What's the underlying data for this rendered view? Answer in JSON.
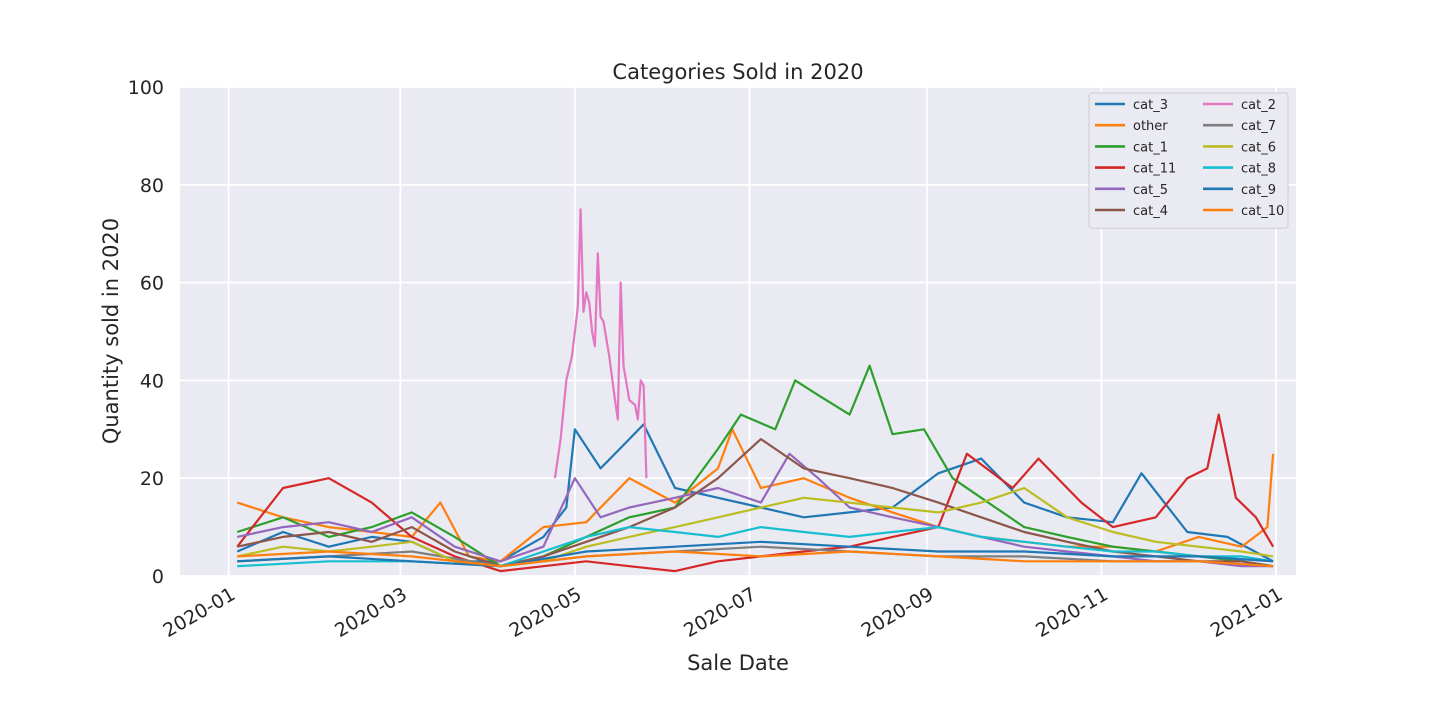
{
  "chart_data": {
    "type": "line",
    "title": "Categories Sold in 2020",
    "xlabel": "Sale Date",
    "ylabel": "Quantity sold in 2020",
    "xlim": [
      "2019-12-15",
      "2021-01-08"
    ],
    "ylim": [
      0,
      100
    ],
    "x_ticks": [
      "2020-01",
      "2020-03",
      "2020-05",
      "2020-07",
      "2020-09",
      "2020-11",
      "2021-01"
    ],
    "y_ticks": [
      0,
      20,
      40,
      60,
      80,
      100
    ],
    "grid": true,
    "legend_position": "top-right",
    "legend_columns": 2,
    "series": [
      {
        "name": "cat_3",
        "color": "#1f77b4",
        "points": [
          [
            "2020-01-04",
            5
          ],
          [
            "2020-01-20",
            9
          ],
          [
            "2020-02-05",
            6
          ],
          [
            "2020-02-20",
            8
          ],
          [
            "2020-03-05",
            7
          ],
          [
            "2020-03-20",
            3
          ],
          [
            "2020-04-05",
            3
          ],
          [
            "2020-04-20",
            8
          ],
          [
            "2020-04-28",
            14
          ],
          [
            "2020-05-01",
            30
          ],
          [
            "2020-05-10",
            22
          ],
          [
            "2020-05-20",
            28
          ],
          [
            "2020-05-25",
            31
          ],
          [
            "2020-06-05",
            18
          ],
          [
            "2020-06-20",
            16
          ],
          [
            "2020-07-05",
            14
          ],
          [
            "2020-07-20",
            12
          ],
          [
            "2020-08-05",
            13
          ],
          [
            "2020-08-20",
            14
          ],
          [
            "2020-09-05",
            21
          ],
          [
            "2020-09-20",
            24
          ],
          [
            "2020-10-05",
            15
          ],
          [
            "2020-10-20",
            12
          ],
          [
            "2020-11-05",
            11
          ],
          [
            "2020-11-15",
            21
          ],
          [
            "2020-12-01",
            9
          ],
          [
            "2020-12-15",
            8
          ],
          [
            "2020-12-31",
            3
          ]
        ]
      },
      {
        "name": "other",
        "color": "#ff7f0e",
        "points": [
          [
            "2020-01-04",
            15
          ],
          [
            "2020-01-20",
            12
          ],
          [
            "2020-02-05",
            10
          ],
          [
            "2020-02-20",
            9
          ],
          [
            "2020-03-05",
            8
          ],
          [
            "2020-03-15",
            15
          ],
          [
            "2020-03-25",
            4
          ],
          [
            "2020-04-05",
            3
          ],
          [
            "2020-04-20",
            10
          ],
          [
            "2020-05-05",
            11
          ],
          [
            "2020-05-20",
            20
          ],
          [
            "2020-06-05",
            15
          ],
          [
            "2020-06-20",
            22
          ],
          [
            "2020-06-25",
            30
          ],
          [
            "2020-07-05",
            18
          ],
          [
            "2020-07-20",
            20
          ],
          [
            "2020-08-05",
            16
          ],
          [
            "2020-08-20",
            13
          ],
          [
            "2020-09-05",
            10
          ],
          [
            "2020-09-20",
            8
          ],
          [
            "2020-10-05",
            7
          ],
          [
            "2020-10-20",
            6
          ],
          [
            "2020-11-05",
            6
          ],
          [
            "2020-11-20",
            5
          ],
          [
            "2020-12-05",
            8
          ],
          [
            "2020-12-20",
            6
          ],
          [
            "2020-12-29",
            10
          ],
          [
            "2020-12-31",
            25
          ]
        ]
      },
      {
        "name": "cat_1",
        "color": "#2ca02c",
        "points": [
          [
            "2020-01-04",
            9
          ],
          [
            "2020-01-20",
            12
          ],
          [
            "2020-02-05",
            8
          ],
          [
            "2020-02-20",
            10
          ],
          [
            "2020-03-05",
            13
          ],
          [
            "2020-03-20",
            8
          ],
          [
            "2020-04-05",
            2
          ],
          [
            "2020-04-20",
            4
          ],
          [
            "2020-05-05",
            8
          ],
          [
            "2020-05-20",
            12
          ],
          [
            "2020-06-05",
            14
          ],
          [
            "2020-06-20",
            26
          ],
          [
            "2020-06-28",
            33
          ],
          [
            "2020-07-10",
            30
          ],
          [
            "2020-07-17",
            40
          ],
          [
            "2020-07-25",
            37
          ],
          [
            "2020-08-05",
            33
          ],
          [
            "2020-08-12",
            43
          ],
          [
            "2020-08-20",
            29
          ],
          [
            "2020-08-31",
            30
          ],
          [
            "2020-09-10",
            20
          ],
          [
            "2020-09-20",
            16
          ],
          [
            "2020-10-05",
            10
          ],
          [
            "2020-10-20",
            8
          ],
          [
            "2020-11-05",
            6
          ],
          [
            "2020-11-20",
            5
          ],
          [
            "2020-12-05",
            4
          ],
          [
            "2020-12-20",
            3
          ],
          [
            "2020-12-31",
            2
          ]
        ]
      },
      {
        "name": "cat_11",
        "color": "#d62728",
        "points": [
          [
            "2020-01-04",
            6
          ],
          [
            "2020-01-20",
            18
          ],
          [
            "2020-02-05",
            20
          ],
          [
            "2020-02-20",
            15
          ],
          [
            "2020-03-05",
            8
          ],
          [
            "2020-03-20",
            4
          ],
          [
            "2020-04-05",
            1
          ],
          [
            "2020-04-20",
            2
          ],
          [
            "2020-05-05",
            3
          ],
          [
            "2020-05-20",
            2
          ],
          [
            "2020-06-05",
            1
          ],
          [
            "2020-06-20",
            3
          ],
          [
            "2020-07-05",
            4
          ],
          [
            "2020-07-20",
            5
          ],
          [
            "2020-08-05",
            6
          ],
          [
            "2020-08-20",
            8
          ],
          [
            "2020-09-05",
            10
          ],
          [
            "2020-09-15",
            25
          ],
          [
            "2020-10-01",
            18
          ],
          [
            "2020-10-10",
            24
          ],
          [
            "2020-10-25",
            15
          ],
          [
            "2020-11-05",
            10
          ],
          [
            "2020-11-20",
            12
          ],
          [
            "2020-12-01",
            20
          ],
          [
            "2020-12-08",
            22
          ],
          [
            "2020-12-12",
            33
          ],
          [
            "2020-12-18",
            16
          ],
          [
            "2020-12-25",
            12
          ],
          [
            "2020-12-31",
            6
          ]
        ]
      },
      {
        "name": "cat_5",
        "color": "#9467bd",
        "points": [
          [
            "2020-01-04",
            8
          ],
          [
            "2020-01-20",
            10
          ],
          [
            "2020-02-05",
            11
          ],
          [
            "2020-02-20",
            9
          ],
          [
            "2020-03-05",
            12
          ],
          [
            "2020-03-20",
            6
          ],
          [
            "2020-04-05",
            3
          ],
          [
            "2020-04-20",
            6
          ],
          [
            "2020-05-01",
            20
          ],
          [
            "2020-05-10",
            12
          ],
          [
            "2020-05-20",
            14
          ],
          [
            "2020-06-05",
            16
          ],
          [
            "2020-06-20",
            18
          ],
          [
            "2020-07-05",
            15
          ],
          [
            "2020-07-15",
            25
          ],
          [
            "2020-07-25",
            20
          ],
          [
            "2020-08-05",
            14
          ],
          [
            "2020-08-20",
            12
          ],
          [
            "2020-09-05",
            10
          ],
          [
            "2020-09-20",
            8
          ],
          [
            "2020-10-05",
            6
          ],
          [
            "2020-10-20",
            5
          ],
          [
            "2020-11-05",
            4
          ],
          [
            "2020-11-20",
            3
          ],
          [
            "2020-12-05",
            3
          ],
          [
            "2020-12-20",
            2
          ],
          [
            "2020-12-31",
            2
          ]
        ]
      },
      {
        "name": "cat_4",
        "color": "#8c564b",
        "points": [
          [
            "2020-01-04",
            6
          ],
          [
            "2020-01-20",
            8
          ],
          [
            "2020-02-05",
            9
          ],
          [
            "2020-02-20",
            7
          ],
          [
            "2020-03-05",
            10
          ],
          [
            "2020-03-20",
            5
          ],
          [
            "2020-04-05",
            2
          ],
          [
            "2020-04-20",
            4
          ],
          [
            "2020-05-05",
            7
          ],
          [
            "2020-05-20",
            10
          ],
          [
            "2020-06-05",
            14
          ],
          [
            "2020-06-20",
            20
          ],
          [
            "2020-07-05",
            28
          ],
          [
            "2020-07-20",
            22
          ],
          [
            "2020-08-05",
            20
          ],
          [
            "2020-08-20",
            18
          ],
          [
            "2020-09-05",
            15
          ],
          [
            "2020-09-20",
            12
          ],
          [
            "2020-10-05",
            9
          ],
          [
            "2020-10-20",
            7
          ],
          [
            "2020-11-05",
            5
          ],
          [
            "2020-11-20",
            4
          ],
          [
            "2020-12-05",
            3
          ],
          [
            "2020-12-20",
            3
          ],
          [
            "2020-12-31",
            2
          ]
        ]
      },
      {
        "name": "cat_2",
        "color": "#e377c2",
        "points": [
          [
            "2020-04-24",
            20
          ],
          [
            "2020-04-26",
            28
          ],
          [
            "2020-04-28",
            40
          ],
          [
            "2020-04-30",
            45
          ],
          [
            "2020-05-02",
            55
          ],
          [
            "2020-05-03",
            75
          ],
          [
            "2020-05-04",
            54
          ],
          [
            "2020-05-05",
            58
          ],
          [
            "2020-05-06",
            56
          ],
          [
            "2020-05-07",
            50
          ],
          [
            "2020-05-08",
            47
          ],
          [
            "2020-05-09",
            66
          ],
          [
            "2020-05-10",
            53
          ],
          [
            "2020-05-11",
            52
          ],
          [
            "2020-05-13",
            45
          ],
          [
            "2020-05-15",
            36
          ],
          [
            "2020-05-16",
            32
          ],
          [
            "2020-05-17",
            60
          ],
          [
            "2020-05-18",
            43
          ],
          [
            "2020-05-20",
            36
          ],
          [
            "2020-05-22",
            35
          ],
          [
            "2020-05-23",
            32
          ],
          [
            "2020-05-24",
            40
          ],
          [
            "2020-05-25",
            39
          ],
          [
            "2020-05-26",
            20
          ]
        ]
      },
      {
        "name": "cat_7",
        "color": "#7f7f7f",
        "points": [
          [
            "2020-01-04",
            3
          ],
          [
            "2020-02-05",
            4
          ],
          [
            "2020-03-05",
            5
          ],
          [
            "2020-04-05",
            2
          ],
          [
            "2020-05-05",
            4
          ],
          [
            "2020-06-05",
            5
          ],
          [
            "2020-07-05",
            6
          ],
          [
            "2020-08-05",
            5
          ],
          [
            "2020-09-05",
            4
          ],
          [
            "2020-10-05",
            4
          ],
          [
            "2020-11-05",
            3
          ],
          [
            "2020-12-05",
            3
          ],
          [
            "2020-12-31",
            2
          ]
        ]
      },
      {
        "name": "cat_6",
        "color": "#bcbd22",
        "points": [
          [
            "2020-01-04",
            4
          ],
          [
            "2020-01-20",
            6
          ],
          [
            "2020-02-05",
            5
          ],
          [
            "2020-02-20",
            6
          ],
          [
            "2020-03-05",
            7
          ],
          [
            "2020-03-20",
            3
          ],
          [
            "2020-04-05",
            2
          ],
          [
            "2020-04-20",
            3
          ],
          [
            "2020-05-05",
            6
          ],
          [
            "2020-05-20",
            8
          ],
          [
            "2020-06-05",
            10
          ],
          [
            "2020-06-20",
            12
          ],
          [
            "2020-07-05",
            14
          ],
          [
            "2020-07-20",
            16
          ],
          [
            "2020-08-05",
            15
          ],
          [
            "2020-08-20",
            14
          ],
          [
            "2020-09-05",
            13
          ],
          [
            "2020-09-20",
            15
          ],
          [
            "2020-10-05",
            18
          ],
          [
            "2020-10-20",
            12
          ],
          [
            "2020-11-05",
            9
          ],
          [
            "2020-11-20",
            7
          ],
          [
            "2020-12-05",
            6
          ],
          [
            "2020-12-20",
            5
          ],
          [
            "2020-12-31",
            4
          ]
        ]
      },
      {
        "name": "cat_8",
        "color": "#17becf",
        "points": [
          [
            "2020-01-04",
            2
          ],
          [
            "2020-02-05",
            3
          ],
          [
            "2020-03-05",
            3
          ],
          [
            "2020-04-05",
            2
          ],
          [
            "2020-04-20",
            5
          ],
          [
            "2020-05-05",
            8
          ],
          [
            "2020-05-20",
            10
          ],
          [
            "2020-06-05",
            9
          ],
          [
            "2020-06-20",
            8
          ],
          [
            "2020-07-05",
            10
          ],
          [
            "2020-07-20",
            9
          ],
          [
            "2020-08-05",
            8
          ],
          [
            "2020-08-20",
            9
          ],
          [
            "2020-09-05",
            10
          ],
          [
            "2020-09-20",
            8
          ],
          [
            "2020-10-05",
            7
          ],
          [
            "2020-10-20",
            6
          ],
          [
            "2020-11-05",
            5
          ],
          [
            "2020-11-20",
            5
          ],
          [
            "2020-12-05",
            4
          ],
          [
            "2020-12-20",
            4
          ],
          [
            "2020-12-31",
            3
          ]
        ]
      },
      {
        "name": "cat_9",
        "color": "#1f77b4",
        "points": [
          [
            "2020-01-04",
            3
          ],
          [
            "2020-02-05",
            4
          ],
          [
            "2020-03-05",
            3
          ],
          [
            "2020-04-05",
            2
          ],
          [
            "2020-05-05",
            5
          ],
          [
            "2020-06-05",
            6
          ],
          [
            "2020-07-05",
            7
          ],
          [
            "2020-08-05",
            6
          ],
          [
            "2020-09-05",
            5
          ],
          [
            "2020-10-05",
            5
          ],
          [
            "2020-11-05",
            4
          ],
          [
            "2020-12-05",
            4
          ],
          [
            "2020-12-31",
            3
          ]
        ]
      },
      {
        "name": "cat_10",
        "color": "#ff7f0e",
        "points": [
          [
            "2020-01-04",
            4
          ],
          [
            "2020-02-05",
            5
          ],
          [
            "2020-03-05",
            4
          ],
          [
            "2020-04-05",
            2
          ],
          [
            "2020-05-05",
            4
          ],
          [
            "2020-06-05",
            5
          ],
          [
            "2020-07-05",
            4
          ],
          [
            "2020-08-05",
            5
          ],
          [
            "2020-09-05",
            4
          ],
          [
            "2020-10-05",
            3
          ],
          [
            "2020-11-05",
            3
          ],
          [
            "2020-12-05",
            3
          ],
          [
            "2020-12-31",
            2
          ]
        ]
      }
    ]
  }
}
